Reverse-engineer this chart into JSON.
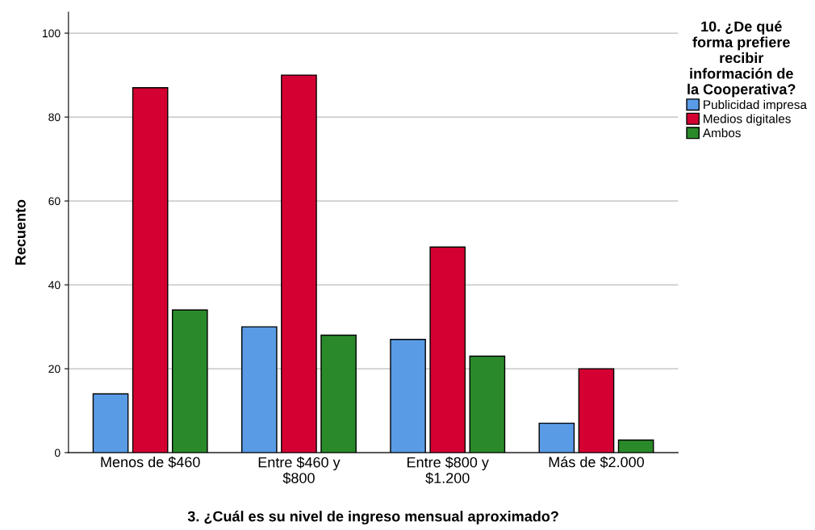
{
  "chart_data": {
    "type": "bar",
    "xlabel": "3. ¿Cuál es su nivel de ingreso mensual aproximado?",
    "ylabel": "Recuento",
    "legend_title": "10. ¿De qué\nforma prefiere\nrecibir\ninformación de\nla Cooperativa?",
    "categories": [
      "Menos de $460",
      "Entre $460 y\n$800",
      "Entre $800 y\n$1.200",
      "Más de $2.000"
    ],
    "series": [
      {
        "name": "Publicidad impresa",
        "color": "#5a9be6",
        "values": [
          14,
          30,
          27,
          7
        ]
      },
      {
        "name": "Medios digitales",
        "color": "#d40032",
        "values": [
          87,
          90,
          49,
          20
        ]
      },
      {
        "name": "Ambos",
        "color": "#2a8a2a",
        "values": [
          34,
          28,
          23,
          3
        ]
      }
    ],
    "ylim": [
      0,
      105
    ],
    "yticks": [
      0,
      20,
      40,
      60,
      80,
      100
    ],
    "grid": "y",
    "legend": "top right"
  }
}
